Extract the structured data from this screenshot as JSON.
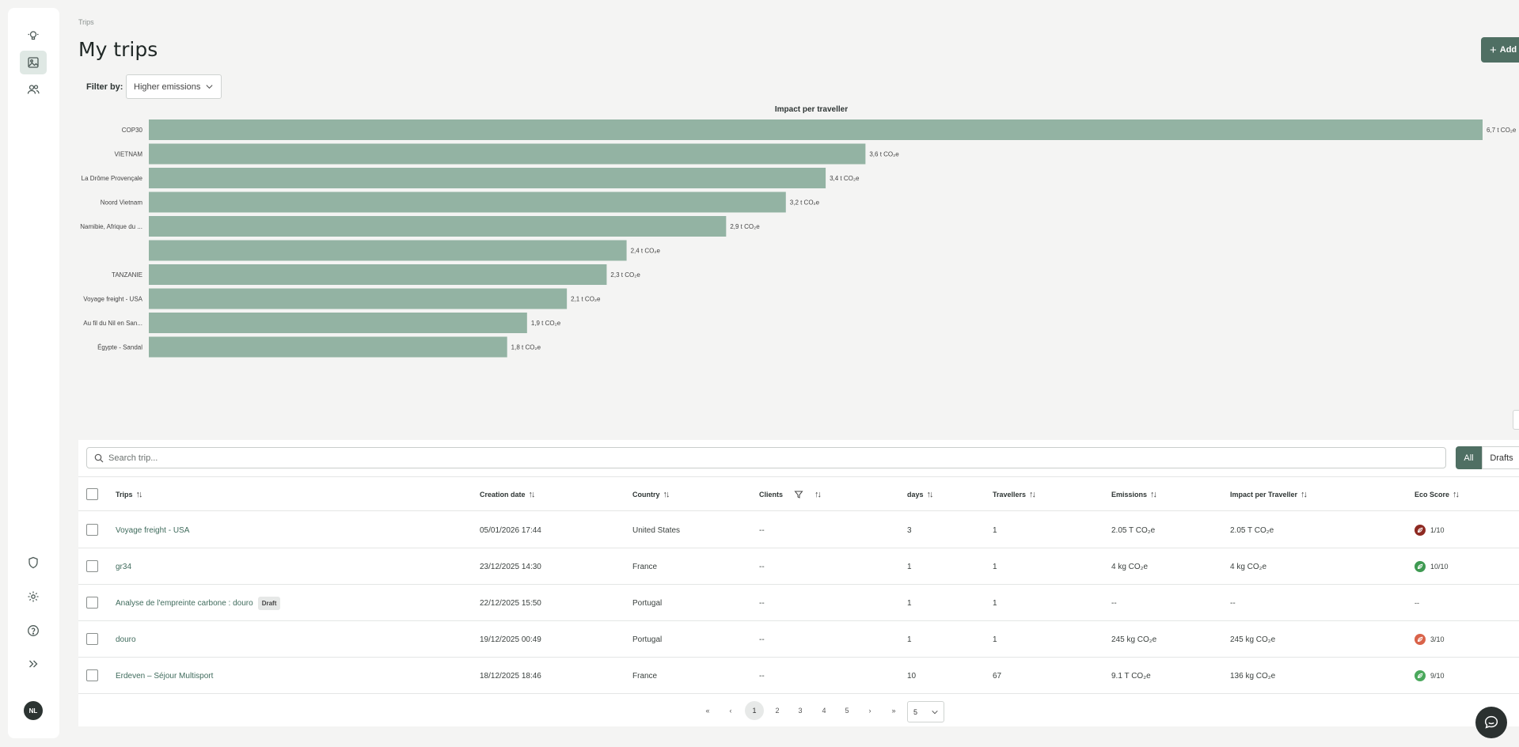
{
  "breadcrumb": "Trips",
  "page_title": "My trips",
  "add_button": "Add",
  "filter": {
    "label": "Filter by:",
    "value": "Higher emissions"
  },
  "user_initials": "NL",
  "chart_data": {
    "type": "bar",
    "orientation": "horizontal",
    "title": "Impact per traveller",
    "categories": [
      "COP30",
      "VIETNAM",
      "La Drôme Provençale",
      "Noord Vietnam",
      "Namibie, Afrique du ...",
      "",
      "TANZANIE",
      "Voyage freight - USA",
      "Au fil du Nil en San...",
      "Égypte - Sandal"
    ],
    "values": [
      6.7,
      3.6,
      3.4,
      3.2,
      2.9,
      2.4,
      2.3,
      2.1,
      1.9,
      1.8
    ],
    "value_labels": [
      "6,7 t CO₂e",
      "3,6 t CO₂e",
      "3,4 t CO₂e",
      "3,2 t CO₂e",
      "2,9 t CO₂e",
      "2,4 t CO₂e",
      "2,3 t CO₂e",
      "2,1 t CO₂e",
      "1,9 t CO₂e",
      "1,8 t CO₂e"
    ],
    "unit": "t CO₂e",
    "xlim": [
      0,
      6.7
    ],
    "bar_color": "#93b3a3",
    "grid": false
  },
  "search": {
    "placeholder": "Search trip..."
  },
  "segments": {
    "all": "All",
    "drafts": "Drafts"
  },
  "columns": {
    "trips": "Trips",
    "creation_date": "Creation date",
    "country": "Country",
    "clients": "Clients",
    "days": "days",
    "travellers": "Travellers",
    "emissions": "Emissions",
    "impact": "Impact per Traveller",
    "eco": "Eco Score"
  },
  "rows": [
    {
      "trip": "Voyage freight - USA",
      "draft": "",
      "date": "05/01/2026 17:44",
      "country": "United States",
      "clients": "--",
      "days": "3",
      "travellers": "1",
      "emissions": "2.05 T CO₂e",
      "impact": "2.05 T CO₂e",
      "eco": "1/10",
      "eco_color": "#8e2a22"
    },
    {
      "trip": "gr34",
      "draft": "",
      "date": "23/12/2025 14:30",
      "country": "France",
      "clients": "--",
      "days": "1",
      "travellers": "1",
      "emissions": "4 kg CO₂e",
      "impact": "4 kg CO₂e",
      "eco": "10/10",
      "eco_color": "#3f9a52"
    },
    {
      "trip": "Analyse de l'empreinte carbone : douro",
      "draft": "Draft",
      "date": "22/12/2025 15:50",
      "country": "Portugal",
      "clients": "--",
      "days": "1",
      "travellers": "1",
      "emissions": "--",
      "impact": "--",
      "eco": "--",
      "eco_color": ""
    },
    {
      "trip": "douro",
      "draft": "",
      "date": "19/12/2025 00:49",
      "country": "Portugal",
      "clients": "--",
      "days": "1",
      "travellers": "1",
      "emissions": "245 kg CO₂e",
      "impact": "245 kg CO₂e",
      "eco": "3/10",
      "eco_color": "#d9634a"
    },
    {
      "trip": "Erdeven – Séjour Multisport",
      "draft": "",
      "date": "18/12/2025 18:46",
      "country": "France",
      "clients": "--",
      "days": "10",
      "travellers": "67",
      "emissions": "9.1 T CO₂e",
      "impact": "136 kg CO₂e",
      "eco": "9/10",
      "eco_color": "#4aa85c"
    }
  ],
  "pagination": {
    "pages": [
      "1",
      "2",
      "3",
      "4",
      "5"
    ],
    "current": "1",
    "page_size": "5",
    "first": "«",
    "prev": "‹",
    "next": "›",
    "last": "»"
  }
}
